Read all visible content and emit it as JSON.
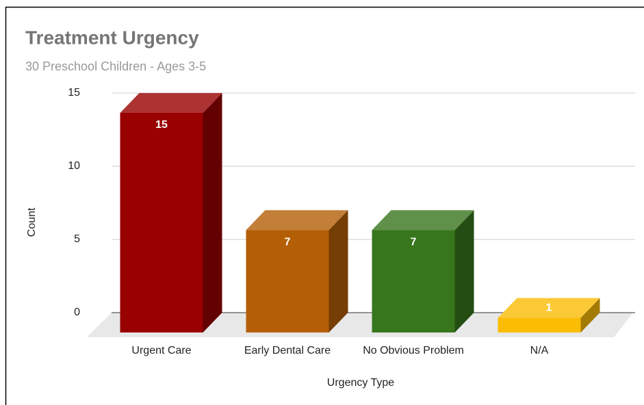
{
  "chart_data": {
    "type": "bar3d",
    "title": "Treatment Urgency",
    "subtitle": "30 Preschool Children - Ages 3-5",
    "x_label": "Urgency Type",
    "y_label": "Count",
    "categories": [
      "Urgent Care",
      "Early Dental Care",
      "No Obvious Problem",
      "N/A"
    ],
    "values": [
      15,
      7,
      7,
      1
    ],
    "colors": [
      "#990000",
      "#b45f06",
      "#38761d",
      "#fbbc04"
    ],
    "ylim": [
      0,
      15
    ],
    "yticks": [
      0,
      5,
      10,
      15
    ],
    "grid": true
  }
}
